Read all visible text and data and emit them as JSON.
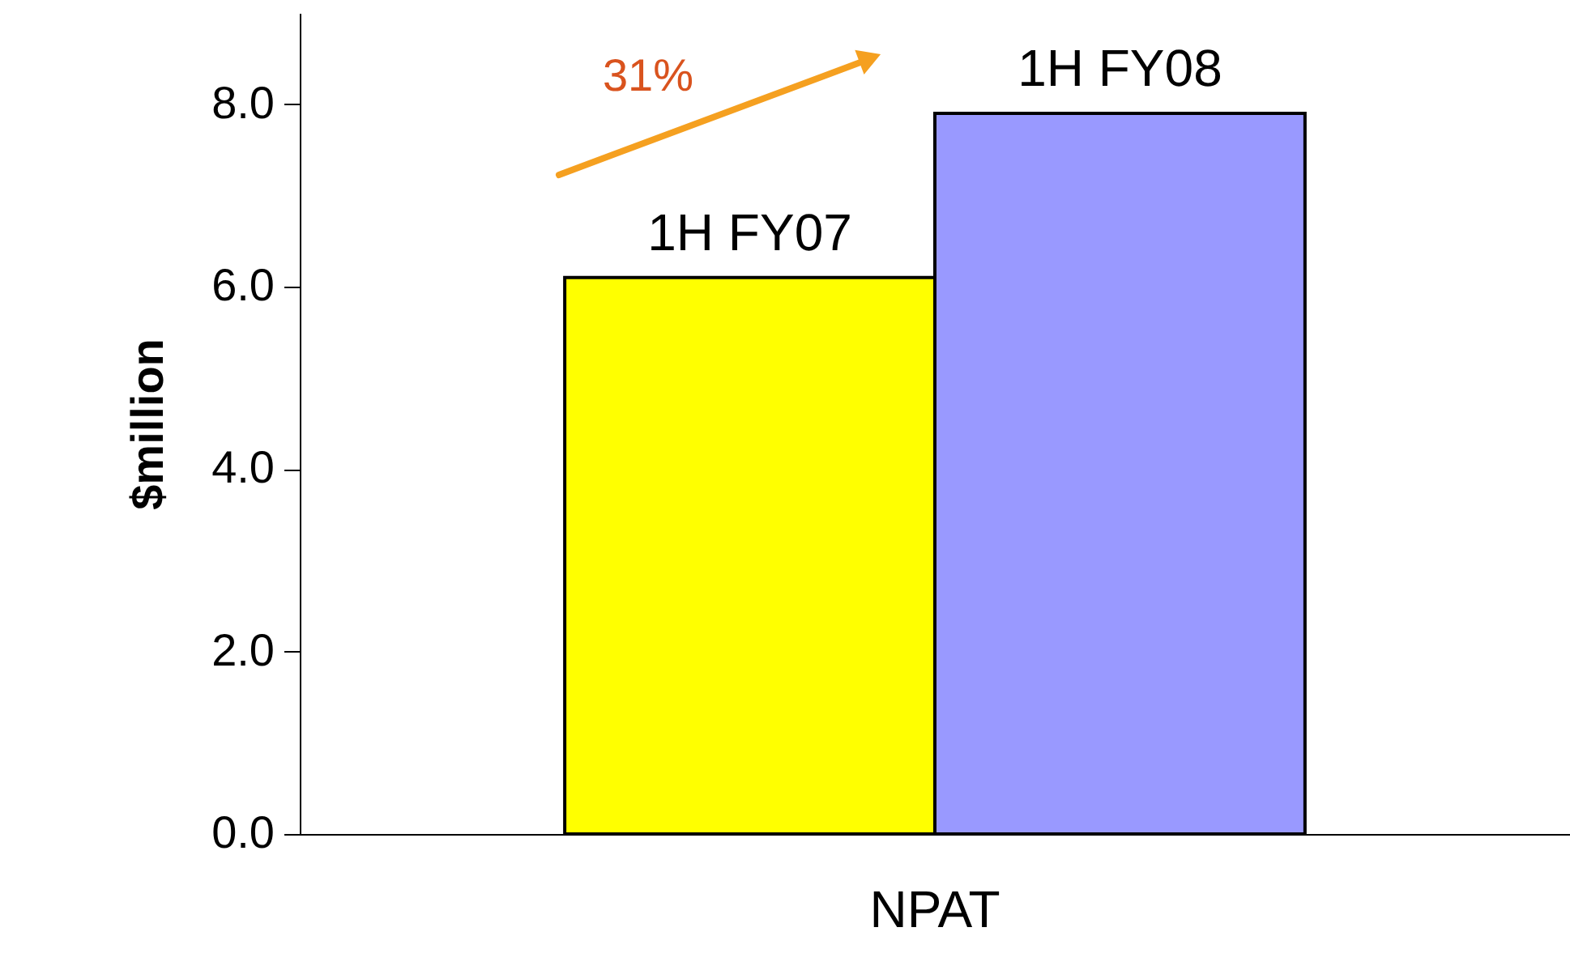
{
  "chart_data": {
    "type": "bar",
    "ylabel": "$million",
    "categories": [
      "NPAT"
    ],
    "series": [
      {
        "name": "1H FY07",
        "color": "#ffff00",
        "values": [
          6.1
        ]
      },
      {
        "name": "1H FY08",
        "color": "#9999ff",
        "values": [
          7.9
        ]
      }
    ],
    "ylim": [
      0,
      9
    ],
    "yticks": [
      {
        "value": 0,
        "label": "0.0"
      },
      {
        "value": 2,
        "label": "2.0"
      },
      {
        "value": 4,
        "label": "4.0"
      },
      {
        "value": 6,
        "label": "6.0"
      },
      {
        "value": 8,
        "label": "8.0"
      }
    ],
    "annotations": [
      "31%"
    ],
    "grid": false
  }
}
